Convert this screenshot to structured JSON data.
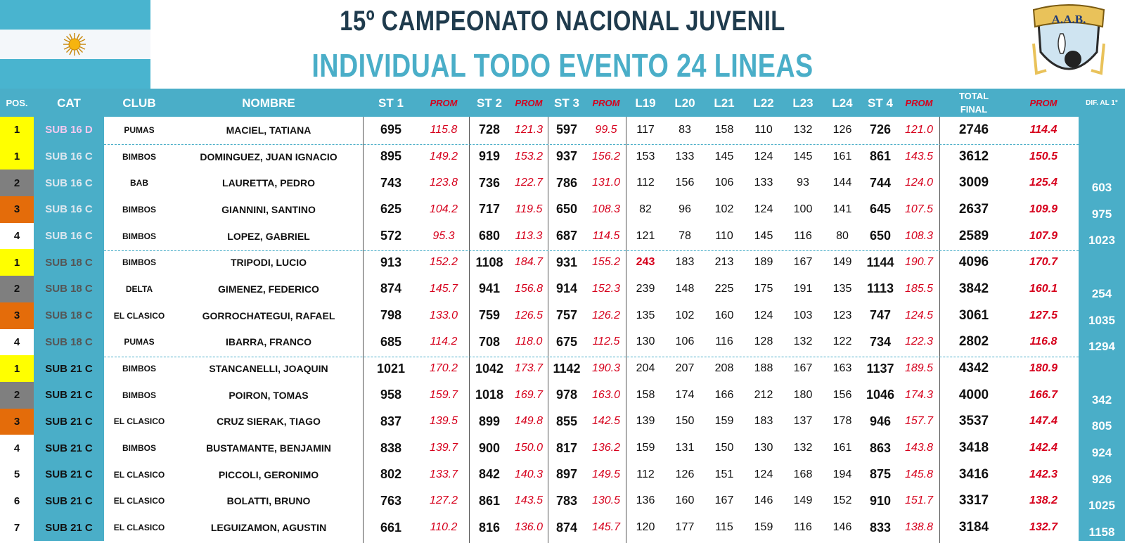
{
  "header": {
    "title": "15º CAMPEONATO NACIONAL JUVENIL",
    "subtitle": "INDIVIDUAL TODO EVENTO 24 LINEAS",
    "logo_text": "A.A.B."
  },
  "columns": {
    "pos": "POS.",
    "cat": "CAT",
    "club": "CLUB",
    "name": "NOMBRE",
    "st1": "ST 1",
    "prom": "PROM",
    "st2": "ST 2",
    "st3": "ST 3",
    "l19": "L19",
    "l20": "L20",
    "l21": "L21",
    "l22": "L22",
    "l23": "L23",
    "l24": "L24",
    "st4": "ST 4",
    "total": "TOTAL FINAL",
    "dif": "DIF. AL 1°"
  },
  "colors": {
    "gold": "#ffff00",
    "silver": "#7f7f7f",
    "bronze": "#e46c0a",
    "accent": "#4aaec8",
    "prom": "#d6001c"
  },
  "rows": [
    {
      "pos": "1",
      "cat": "SUB 16 D",
      "club": "PUMAS",
      "name": "MACIEL, TATIANA",
      "st1": "695",
      "p1": "115.8",
      "st2": "728",
      "p2": "121.3",
      "st3": "597",
      "p3": "99.5",
      "l19": "117",
      "l20": "83",
      "l21": "158",
      "l22": "110",
      "l23": "132",
      "l24": "126",
      "st4": "726",
      "p4": "121.0",
      "total": "2746",
      "tprom": "114.4",
      "dif": ""
    },
    {
      "pos": "1",
      "cat": "SUB 16 C",
      "club": "BIMBOS",
      "name": "DOMINGUEZ, JUAN IGNACIO",
      "st1": "895",
      "p1": "149.2",
      "st2": "919",
      "p2": "153.2",
      "st3": "937",
      "p3": "156.2",
      "l19": "153",
      "l20": "133",
      "l21": "145",
      "l22": "124",
      "l23": "145",
      "l24": "161",
      "st4": "861",
      "p4": "143.5",
      "total": "3612",
      "tprom": "150.5",
      "dif": ""
    },
    {
      "pos": "2",
      "cat": "SUB 16 C",
      "club": "BAB",
      "name": "LAURETTA, PEDRO",
      "st1": "743",
      "p1": "123.8",
      "st2": "736",
      "p2": "122.7",
      "st3": "786",
      "p3": "131.0",
      "l19": "112",
      "l20": "156",
      "l21": "106",
      "l22": "133",
      "l23": "93",
      "l24": "144",
      "st4": "744",
      "p4": "124.0",
      "total": "3009",
      "tprom": "125.4",
      "dif": "603"
    },
    {
      "pos": "3",
      "cat": "SUB 16 C",
      "club": "BIMBOS",
      "name": "GIANNINI, SANTINO",
      "st1": "625",
      "p1": "104.2",
      "st2": "717",
      "p2": "119.5",
      "st3": "650",
      "p3": "108.3",
      "l19": "82",
      "l20": "96",
      "l21": "102",
      "l22": "124",
      "l23": "100",
      "l24": "141",
      "st4": "645",
      "p4": "107.5",
      "total": "2637",
      "tprom": "109.9",
      "dif": "975"
    },
    {
      "pos": "4",
      "cat": "SUB 16 C",
      "club": "BIMBOS",
      "name": "LOPEZ, GABRIEL",
      "st1": "572",
      "p1": "95.3",
      "st2": "680",
      "p2": "113.3",
      "st3": "687",
      "p3": "114.5",
      "l19": "121",
      "l20": "78",
      "l21": "110",
      "l22": "145",
      "l23": "116",
      "l24": "80",
      "st4": "650",
      "p4": "108.3",
      "total": "2589",
      "tprom": "107.9",
      "dif": "1023"
    },
    {
      "pos": "1",
      "cat": "SUB 18 C",
      "club": "BIMBOS",
      "name": "TRIPODI, LUCIO",
      "st1": "913",
      "p1": "152.2",
      "st2": "1108",
      "p2": "184.7",
      "st3": "931",
      "p3": "155.2",
      "l19": "243",
      "l20": "183",
      "l21": "213",
      "l22": "189",
      "l23": "167",
      "l24": "149",
      "st4": "1144",
      "p4": "190.7",
      "total": "4096",
      "tprom": "170.7",
      "dif": ""
    },
    {
      "pos": "2",
      "cat": "SUB 18 C",
      "club": "DELTA",
      "name": "GIMENEZ, FEDERICO",
      "st1": "874",
      "p1": "145.7",
      "st2": "941",
      "p2": "156.8",
      "st3": "914",
      "p3": "152.3",
      "l19": "239",
      "l20": "148",
      "l21": "225",
      "l22": "175",
      "l23": "191",
      "l24": "135",
      "st4": "1113",
      "p4": "185.5",
      "total": "3842",
      "tprom": "160.1",
      "dif": "254"
    },
    {
      "pos": "3",
      "cat": "SUB 18 C",
      "club": "EL CLASICO",
      "name": "GORROCHATEGUI, RAFAEL",
      "st1": "798",
      "p1": "133.0",
      "st2": "759",
      "p2": "126.5",
      "st3": "757",
      "p3": "126.2",
      "l19": "135",
      "l20": "102",
      "l21": "160",
      "l22": "124",
      "l23": "103",
      "l24": "123",
      "st4": "747",
      "p4": "124.5",
      "total": "3061",
      "tprom": "127.5",
      "dif": "1035"
    },
    {
      "pos": "4",
      "cat": "SUB 18 C",
      "club": "PUMAS",
      "name": "IBARRA, FRANCO",
      "st1": "685",
      "p1": "114.2",
      "st2": "708",
      "p2": "118.0",
      "st3": "675",
      "p3": "112.5",
      "l19": "130",
      "l20": "106",
      "l21": "116",
      "l22": "128",
      "l23": "132",
      "l24": "122",
      "st4": "734",
      "p4": "122.3",
      "total": "2802",
      "tprom": "116.8",
      "dif": "1294"
    },
    {
      "pos": "1",
      "cat": "SUB 21 C",
      "club": "BIMBOS",
      "name": "STANCANELLI, JOAQUIN",
      "st1": "1021",
      "p1": "170.2",
      "st2": "1042",
      "p2": "173.7",
      "st3": "1142",
      "p3": "190.3",
      "l19": "204",
      "l20": "207",
      "l21": "208",
      "l22": "188",
      "l23": "167",
      "l24": "163",
      "st4": "1137",
      "p4": "189.5",
      "total": "4342",
      "tprom": "180.9",
      "dif": ""
    },
    {
      "pos": "2",
      "cat": "SUB 21 C",
      "club": "BIMBOS",
      "name": "POIRON, TOMAS",
      "st1": "958",
      "p1": "159.7",
      "st2": "1018",
      "p2": "169.7",
      "st3": "978",
      "p3": "163.0",
      "l19": "158",
      "l20": "174",
      "l21": "166",
      "l22": "212",
      "l23": "180",
      "l24": "156",
      "st4": "1046",
      "p4": "174.3",
      "total": "4000",
      "tprom": "166.7",
      "dif": "342"
    },
    {
      "pos": "3",
      "cat": "SUB 21 C",
      "club": "EL CLASICO",
      "name": "CRUZ SIERAK, TIAGO",
      "st1": "837",
      "p1": "139.5",
      "st2": "899",
      "p2": "149.8",
      "st3": "855",
      "p3": "142.5",
      "l19": "139",
      "l20": "150",
      "l21": "159",
      "l22": "183",
      "l23": "137",
      "l24": "178",
      "st4": "946",
      "p4": "157.7",
      "total": "3537",
      "tprom": "147.4",
      "dif": "805"
    },
    {
      "pos": "4",
      "cat": "SUB 21 C",
      "club": "BIMBOS",
      "name": "BUSTAMANTE, BENJAMIN",
      "st1": "838",
      "p1": "139.7",
      "st2": "900",
      "p2": "150.0",
      "st3": "817",
      "p3": "136.2",
      "l19": "159",
      "l20": "131",
      "l21": "150",
      "l22": "130",
      "l23": "132",
      "l24": "161",
      "st4": "863",
      "p4": "143.8",
      "total": "3418",
      "tprom": "142.4",
      "dif": "924"
    },
    {
      "pos": "5",
      "cat": "SUB 21 C",
      "club": "EL CLASICO",
      "name": "PICCOLI, GERONIMO",
      "st1": "802",
      "p1": "133.7",
      "st2": "842",
      "p2": "140.3",
      "st3": "897",
      "p3": "149.5",
      "l19": "112",
      "l20": "126",
      "l21": "151",
      "l22": "124",
      "l23": "168",
      "l24": "194",
      "st4": "875",
      "p4": "145.8",
      "total": "3416",
      "tprom": "142.3",
      "dif": "926"
    },
    {
      "pos": "6",
      "cat": "SUB 21 C",
      "club": "EL CLASICO",
      "name": "BOLATTI, BRUNO",
      "st1": "763",
      "p1": "127.2",
      "st2": "861",
      "p2": "143.5",
      "st3": "783",
      "p3": "130.5",
      "l19": "136",
      "l20": "160",
      "l21": "167",
      "l22": "146",
      "l23": "149",
      "l24": "152",
      "st4": "910",
      "p4": "151.7",
      "total": "3317",
      "tprom": "138.2",
      "dif": "1025"
    },
    {
      "pos": "7",
      "cat": "SUB 21 C",
      "club": "EL CLASICO",
      "name": "LEGUIZAMON, AGUSTIN",
      "st1": "661",
      "p1": "110.2",
      "st2": "816",
      "p2": "136.0",
      "st3": "874",
      "p3": "145.7",
      "l19": "120",
      "l20": "177",
      "l21": "115",
      "l22": "159",
      "l23": "116",
      "l24": "146",
      "st4": "833",
      "p4": "138.8",
      "total": "3184",
      "tprom": "132.7",
      "dif": "1158"
    }
  ]
}
